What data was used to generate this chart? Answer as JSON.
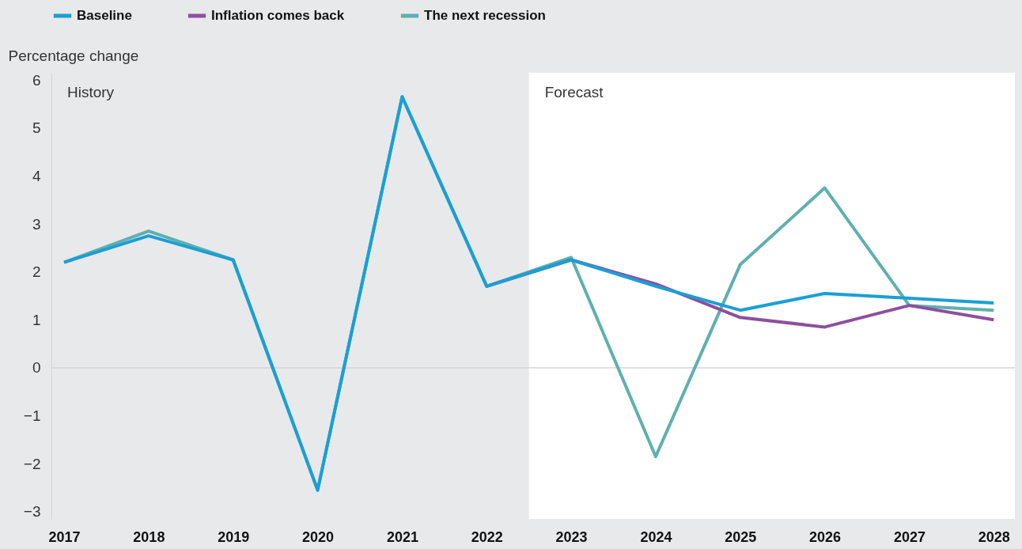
{
  "chart_data": {
    "type": "line",
    "ylabel": "Percentage change",
    "x": [
      2017,
      2018,
      2019,
      2020,
      2021,
      2022,
      2023,
      2024,
      2025,
      2026,
      2027,
      2028
    ],
    "xlim": [
      2016.85,
      2028.25
    ],
    "xticks": [
      2017,
      2018,
      2019,
      2020,
      2021,
      2022,
      2023,
      2024,
      2025,
      2026,
      2027,
      2028
    ],
    "ylim": [
      -3.15,
      6.15
    ],
    "yticks": [
      -3,
      -2,
      -1,
      0,
      1,
      2,
      3,
      4,
      5,
      6
    ],
    "series": [
      {
        "name": "Baseline",
        "color": "#1a9fd6",
        "values": [
          2.2,
          2.75,
          2.25,
          -2.55,
          5.65,
          1.7,
          2.25,
          1.7,
          1.2,
          1.55,
          1.45,
          1.35
        ]
      },
      {
        "name": "Inflation comes back",
        "color": "#8e4f9e",
        "values": [
          null,
          null,
          null,
          null,
          null,
          1.7,
          2.25,
          1.75,
          1.05,
          0.85,
          1.3,
          1.0
        ]
      },
      {
        "name": "The next recession",
        "color": "#5fb0ae",
        "values": [
          2.2,
          2.85,
          2.25,
          -2.55,
          5.65,
          1.7,
          2.3,
          -1.85,
          2.15,
          3.75,
          1.3,
          1.2
        ]
      }
    ],
    "bands": [
      {
        "axis": "x",
        "from": 2022.5,
        "to": 2028.25,
        "label": "Forecast",
        "color": "#ffffff"
      }
    ],
    "ref_lines": [
      {
        "axis": "y",
        "value": 0,
        "color": "#d4d4d4"
      }
    ],
    "annotations": [
      "History"
    ],
    "legend": "top left",
    "grid": false,
    "line_style": "solid",
    "marker": "none"
  }
}
